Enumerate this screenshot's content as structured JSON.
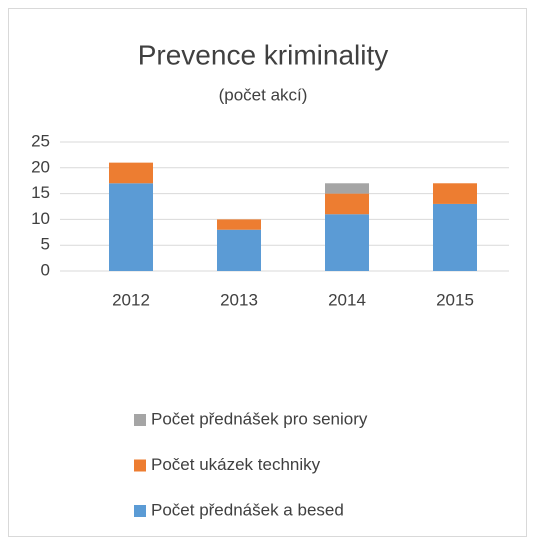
{
  "chart_data": {
    "type": "stacked_bar",
    "title": "Prevence kriminality",
    "subtitle": "(počet akcí)",
    "categories": [
      "2012",
      "2013",
      "2014",
      "2015"
    ],
    "series": [
      {
        "name": "Počet přednášek a besed",
        "color": "#5b9bd5",
        "values": [
          17,
          8,
          11,
          13
        ]
      },
      {
        "name": "Počet ukázek techniky",
        "color": "#ed7d31",
        "values": [
          4,
          2,
          4,
          4
        ]
      },
      {
        "name": "Počet přednášek pro seniory",
        "color": "#a5a5a5",
        "values": [
          0,
          0,
          2,
          0
        ]
      }
    ],
    "ylim": [
      0,
      25
    ],
    "yticks": [
      0,
      5,
      10,
      15,
      20,
      25
    ],
    "grid": true,
    "legend": "bottom"
  }
}
